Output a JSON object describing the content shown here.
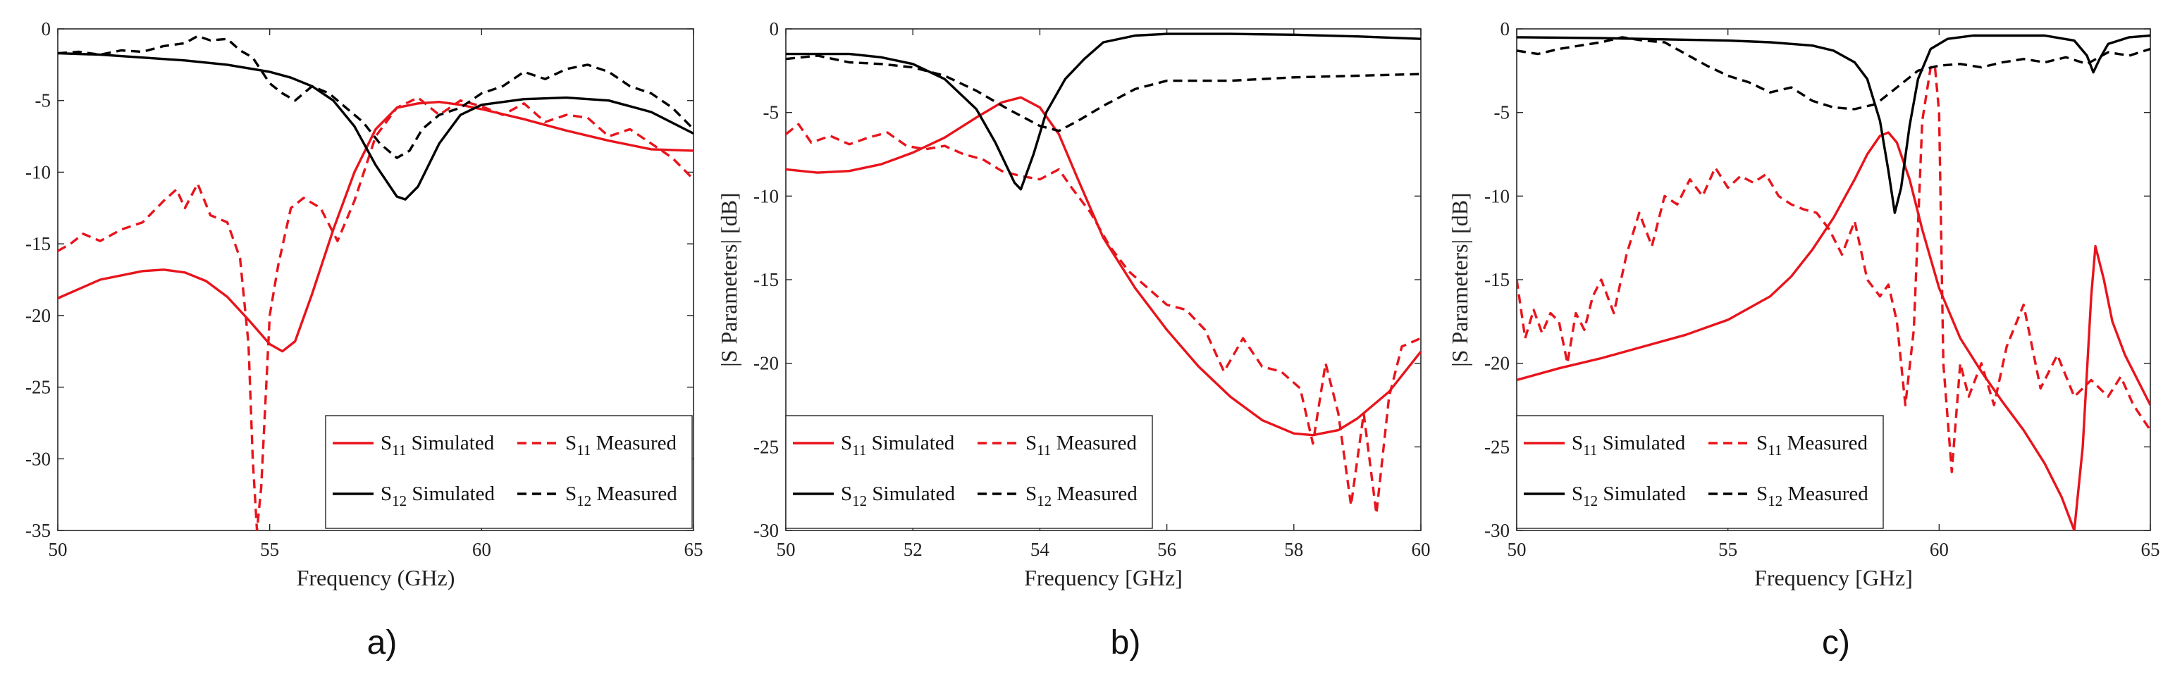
{
  "chart_data": [
    {
      "type": "line",
      "panel_label": "a)",
      "xlabel": "Frequency (GHz)",
      "ylabel": "",
      "xlim": [
        50,
        65
      ],
      "ylim": [
        -35,
        0
      ],
      "xticks": [
        50,
        55,
        60,
        65
      ],
      "yticks": [
        0,
        -5,
        -10,
        -15,
        -20,
        -25,
        -30,
        -35
      ],
      "x_tick_labels": [
        "50",
        "55",
        "60",
        "65"
      ],
      "y_tick_labels": [
        "0",
        "-5",
        "-10",
        "-15",
        "-20",
        "-25",
        "-30",
        "-35"
      ],
      "grid": false,
      "legend_position": "bottom-right",
      "series": [
        {
          "name": "S11 Simulated",
          "legend_main": "S",
          "legend_sub": "11",
          "legend_rest": " Simulated",
          "color": "#e8141c",
          "dash": "solid",
          "x": [
            50,
            51,
            52,
            52.5,
            53,
            53.5,
            54,
            54.5,
            55,
            55.3,
            55.6,
            56,
            56.5,
            57,
            57.5,
            58,
            58.5,
            59,
            59.5,
            60,
            61,
            62,
            63,
            64,
            65
          ],
          "y": [
            -18.8,
            -17.5,
            -16.9,
            -16.8,
            -17,
            -17.6,
            -18.7,
            -20.3,
            -22,
            -22.5,
            -21.8,
            -18.5,
            -14,
            -10,
            -7,
            -5.5,
            -5.2,
            -5.1,
            -5.3,
            -5.6,
            -6.3,
            -7.1,
            -7.8,
            -8.4,
            -8.5
          ]
        },
        {
          "name": "S11 Measured",
          "legend_main": "S",
          "legend_sub": "11",
          "legend_rest": " Measured",
          "color": "#e8141c",
          "dash": "dashed",
          "x": [
            50,
            50.3,
            50.6,
            51,
            51.5,
            52,
            52.5,
            52.8,
            53,
            53.3,
            53.6,
            54,
            54.3,
            54.5,
            54.6,
            54.7,
            54.8,
            55,
            55.2,
            55.5,
            55.8,
            56.2,
            56.6,
            57,
            57.5,
            58,
            58.5,
            59,
            59.5,
            60,
            60.5,
            61,
            61.5,
            62,
            62.5,
            63,
            63.5,
            64,
            64.5,
            65
          ],
          "y": [
            -15.5,
            -15,
            -14.3,
            -14.8,
            -14,
            -13.5,
            -12,
            -11.2,
            -12.5,
            -10.8,
            -13,
            -13.5,
            -16,
            -22,
            -30,
            -35,
            -32,
            -20,
            -16.5,
            -12.5,
            -11.8,
            -12.5,
            -14.8,
            -12,
            -7.5,
            -5.5,
            -4.8,
            -6,
            -5,
            -5.4,
            -6,
            -5.2,
            -6.5,
            -6,
            -6.2,
            -7.5,
            -7,
            -8,
            -9,
            -10.5
          ]
        },
        {
          "name": "S12 Simulated",
          "legend_main": "S",
          "legend_sub": "12",
          "legend_rest": " Simulated",
          "color": "#000000",
          "dash": "solid",
          "x": [
            50,
            51,
            52,
            53,
            54,
            55,
            55.5,
            56,
            56.5,
            57,
            57.5,
            58,
            58.2,
            58.5,
            59,
            59.5,
            60,
            61,
            62,
            63,
            64,
            65
          ],
          "y": [
            -1.7,
            -1.8,
            -2,
            -2.2,
            -2.5,
            -3,
            -3.4,
            -4,
            -5,
            -6.8,
            -9.5,
            -11.7,
            -11.9,
            -11,
            -8,
            -6,
            -5.3,
            -4.9,
            -4.8,
            -5,
            -5.8,
            -7.3
          ]
        },
        {
          "name": "S12 Measured",
          "legend_main": "S",
          "legend_sub": "12",
          "legend_rest": " Measured",
          "color": "#000000",
          "dash": "dashed",
          "x": [
            50,
            50.5,
            51,
            51.5,
            52,
            52.5,
            53,
            53.3,
            53.6,
            54,
            54.3,
            54.6,
            55,
            55.3,
            55.6,
            56,
            56.4,
            56.8,
            57.2,
            57.6,
            58,
            58.3,
            58.6,
            59,
            59.5,
            60,
            60.5,
            61,
            61.5,
            62,
            62.5,
            63,
            63.5,
            64,
            64.5,
            65
          ],
          "y": [
            -1.7,
            -1.6,
            -1.8,
            -1.5,
            -1.6,
            -1.2,
            -1,
            -0.5,
            -0.8,
            -0.7,
            -1.5,
            -2,
            -3.8,
            -4.5,
            -5,
            -4,
            -4.5,
            -5.5,
            -6.5,
            -8,
            -9,
            -8.5,
            -7,
            -6,
            -5.5,
            -4.5,
            -4,
            -3,
            -3.5,
            -2.8,
            -2.5,
            -3,
            -4,
            -4.5,
            -5.5,
            -7
          ]
        }
      ]
    },
    {
      "type": "line",
      "panel_label": "b)",
      "xlabel": "Frequency [GHz]",
      "ylabel": "|S Parameters| [dB]",
      "xlim": [
        50,
        60
      ],
      "ylim": [
        -30,
        0
      ],
      "xticks": [
        50,
        52,
        54,
        56,
        58,
        60
      ],
      "yticks": [
        0,
        -5,
        -10,
        -15,
        -20,
        -25,
        -30
      ],
      "x_tick_labels": [
        "50",
        "52",
        "54",
        "56",
        "58",
        "60"
      ],
      "y_tick_labels": [
        "0",
        "-5",
        "-10",
        "-15",
        "-20",
        "-25",
        "-30"
      ],
      "grid": false,
      "legend_position": "bottom-left",
      "series": [
        {
          "name": "S11 Simulated",
          "legend_main": "S",
          "legend_sub": "11",
          "legend_rest": " Simulated",
          "color": "#e8141c",
          "dash": "solid",
          "x": [
            50,
            50.5,
            51,
            51.5,
            52,
            52.5,
            53,
            53.4,
            53.7,
            54,
            54.3,
            54.6,
            55,
            55.5,
            56,
            56.5,
            57,
            57.5,
            58,
            58.3,
            58.7,
            59,
            59.5,
            60
          ],
          "y": [
            -8.4,
            -8.6,
            -8.5,
            -8.1,
            -7.4,
            -6.5,
            -5.3,
            -4.4,
            -4.1,
            -4.7,
            -6.3,
            -9,
            -12.5,
            -15.5,
            -18,
            -20.2,
            -22,
            -23.4,
            -24.2,
            -24.3,
            -24,
            -23.3,
            -21.7,
            -19.3
          ]
        },
        {
          "name": "S11 Measured",
          "legend_main": "S",
          "legend_sub": "11",
          "legend_rest": " Measured",
          "color": "#e8141c",
          "dash": "dashed",
          "x": [
            50,
            50.2,
            50.4,
            50.7,
            51,
            51.3,
            51.6,
            51.9,
            52.2,
            52.5,
            52.8,
            53.1,
            53.4,
            53.7,
            54,
            54.3,
            54.5,
            54.8,
            55.1,
            55.4,
            55.7,
            56,
            56.3,
            56.6,
            56.9,
            57.2,
            57.5,
            57.8,
            58.1,
            58.3,
            58.5,
            58.7,
            58.9,
            59.1,
            59.3,
            59.5,
            59.7,
            60
          ],
          "y": [
            -6.3,
            -5.7,
            -6.8,
            -6.4,
            -6.9,
            -6.5,
            -6.2,
            -7,
            -7.2,
            -7,
            -7.5,
            -7.8,
            -8.5,
            -8.8,
            -9,
            -8.4,
            -9.5,
            -11,
            -13,
            -14.5,
            -15.5,
            -16.5,
            -16.8,
            -18,
            -20.5,
            -18.5,
            -20.2,
            -20.5,
            -21.5,
            -24.8,
            -20,
            -23,
            -28.5,
            -23,
            -29,
            -22,
            -19,
            -18.5
          ]
        },
        {
          "name": "S12 Simulated",
          "legend_main": "S",
          "legend_sub": "12",
          "legend_rest": " Simulated",
          "color": "#000000",
          "dash": "solid",
          "x": [
            50,
            51,
            51.5,
            52,
            52.5,
            53,
            53.3,
            53.6,
            53.7,
            53.9,
            54.1,
            54.4,
            54.7,
            55,
            55.5,
            56,
            57,
            58,
            59,
            60
          ],
          "y": [
            -1.5,
            -1.5,
            -1.7,
            -2.1,
            -3,
            -4.8,
            -6.8,
            -9.2,
            -9.6,
            -7.5,
            -5,
            -3,
            -1.8,
            -0.8,
            -0.4,
            -0.3,
            -0.3,
            -0.35,
            -0.45,
            -0.6
          ]
        },
        {
          "name": "S12 Measured",
          "legend_main": "S",
          "legend_sub": "12",
          "legend_rest": " Measured",
          "color": "#000000",
          "dash": "dashed",
          "x": [
            50,
            50.5,
            51,
            51.5,
            52,
            52.5,
            53,
            53.5,
            54,
            54.3,
            54.6,
            55,
            55.5,
            56,
            57,
            58,
            59,
            60
          ],
          "y": [
            -1.8,
            -1.6,
            -2,
            -2.1,
            -2.3,
            -2.8,
            -3.7,
            -4.8,
            -5.8,
            -6.1,
            -5.5,
            -4.6,
            -3.6,
            -3.1,
            -3.1,
            -2.9,
            -2.8,
            -2.7
          ]
        }
      ]
    },
    {
      "type": "line",
      "panel_label": "c)",
      "xlabel": "Frequency [GHz]",
      "ylabel": "|S Parameters| [dB]",
      "xlim": [
        50,
        65
      ],
      "ylim": [
        -30,
        0
      ],
      "xticks": [
        50,
        55,
        60,
        65
      ],
      "yticks": [
        0,
        -5,
        -10,
        -15,
        -20,
        -25,
        -30
      ],
      "x_tick_labels": [
        "50",
        "55",
        "60",
        "65"
      ],
      "y_tick_labels": [
        "0",
        "-5",
        "-10",
        "-15",
        "-20",
        "-25",
        "-30"
      ],
      "grid": false,
      "legend_position": "bottom-left",
      "series": [
        {
          "name": "S11 Simulated",
          "legend_main": "S",
          "legend_sub": "11",
          "legend_rest": " Simulated",
          "color": "#e8141c",
          "dash": "solid",
          "x": [
            50,
            51,
            52,
            53,
            54,
            55,
            56,
            56.5,
            57,
            57.5,
            58,
            58.3,
            58.6,
            58.8,
            59,
            59.3,
            59.6,
            60,
            60.5,
            61,
            61.5,
            62,
            62.5,
            62.9,
            63.2,
            63.4,
            63.6,
            63.7,
            63.9,
            64.1,
            64.4,
            64.7,
            65
          ],
          "y": [
            -21,
            -20.3,
            -19.7,
            -19,
            -18.3,
            -17.4,
            -16,
            -14.8,
            -13.2,
            -11.3,
            -9,
            -7.5,
            -6.4,
            -6.2,
            -6.8,
            -9,
            -12,
            -15.5,
            -18.5,
            -20.5,
            -22.3,
            -24,
            -26,
            -28,
            -30,
            -25,
            -16,
            -13,
            -15,
            -17.5,
            -19.5,
            -21,
            -22.5
          ]
        },
        {
          "name": "S11 Measured",
          "legend_main": "S",
          "legend_sub": "11",
          "legend_rest": " Measured",
          "color": "#e8141c",
          "dash": "dashed",
          "x": [
            50,
            50.2,
            50.4,
            50.6,
            50.8,
            51,
            51.2,
            51.4,
            51.6,
            51.8,
            52,
            52.3,
            52.6,
            52.9,
            53.2,
            53.5,
            53.8,
            54.1,
            54.4,
            54.7,
            55,
            55.3,
            55.6,
            55.9,
            56.2,
            56.5,
            56.8,
            57.1,
            57.4,
            57.7,
            58,
            58.3,
            58.6,
            58.8,
            59,
            59.2,
            59.4,
            59.6,
            59.8,
            59.9,
            60,
            60.1,
            60.3,
            60.5,
            60.7,
            61,
            61.3,
            61.6,
            62,
            62.4,
            62.8,
            63.2,
            63.6,
            64,
            64.3,
            64.6,
            65
          ],
          "y": [
            -15,
            -18.5,
            -16.8,
            -18.2,
            -17,
            -17.5,
            -20,
            -17,
            -18,
            -16,
            -15,
            -17,
            -13.5,
            -11,
            -13,
            -10,
            -10.5,
            -9,
            -10,
            -8.3,
            -9.5,
            -8.8,
            -9.2,
            -8.7,
            -10,
            -10.5,
            -10.8,
            -11,
            -12,
            -13.5,
            -11.5,
            -15,
            -16,
            -15.3,
            -17.5,
            -22.5,
            -18,
            -5.5,
            -2.3,
            -2.2,
            -5,
            -20,
            -26.5,
            -20,
            -22,
            -20,
            -22.5,
            -19,
            -16.5,
            -21.5,
            -19.5,
            -22,
            -21,
            -22,
            -20.8,
            -22.5,
            -24
          ]
        },
        {
          "name": "S12 Simulated",
          "legend_main": "S",
          "legend_sub": "12",
          "legend_rest": " Simulated",
          "color": "#000000",
          "dash": "solid",
          "x": [
            50,
            52,
            54,
            55,
            56,
            57,
            57.5,
            58,
            58.3,
            58.6,
            58.8,
            58.95,
            59.1,
            59.3,
            59.5,
            59.8,
            60.2,
            60.8,
            61.5,
            62.5,
            63.2,
            63.5,
            63.65,
            63.8,
            64,
            64.5,
            65
          ],
          "y": [
            -0.5,
            -0.55,
            -0.65,
            -0.7,
            -0.8,
            -1,
            -1.3,
            -2,
            -3,
            -5.5,
            -8.5,
            -11,
            -9.5,
            -5.8,
            -3,
            -1.2,
            -0.6,
            -0.4,
            -0.4,
            -0.4,
            -0.7,
            -1.6,
            -2.6,
            -1.8,
            -0.9,
            -0.5,
            -0.4
          ]
        },
        {
          "name": "S12 Measured",
          "legend_main": "S",
          "legend_sub": "12",
          "legend_rest": " Measured",
          "color": "#000000",
          "dash": "dashed",
          "x": [
            50,
            50.5,
            51,
            51.5,
            52,
            52.5,
            53,
            53.5,
            54,
            54.5,
            55,
            55.5,
            56,
            56.5,
            57,
            57.5,
            58,
            58.5,
            59,
            59.5,
            60,
            60.5,
            61,
            61.5,
            62,
            62.5,
            63,
            63.5,
            64,
            64.5,
            65
          ],
          "y": [
            -1.3,
            -1.5,
            -1.2,
            -1,
            -0.8,
            -0.5,
            -0.7,
            -0.8,
            -1.5,
            -2.2,
            -2.8,
            -3.2,
            -3.8,
            -3.5,
            -4.3,
            -4.7,
            -4.8,
            -4.5,
            -3.5,
            -2.5,
            -2.2,
            -2.1,
            -2.3,
            -2,
            -1.8,
            -2,
            -1.7,
            -2.1,
            -1.4,
            -1.6,
            -1.2
          ]
        }
      ]
    }
  ]
}
